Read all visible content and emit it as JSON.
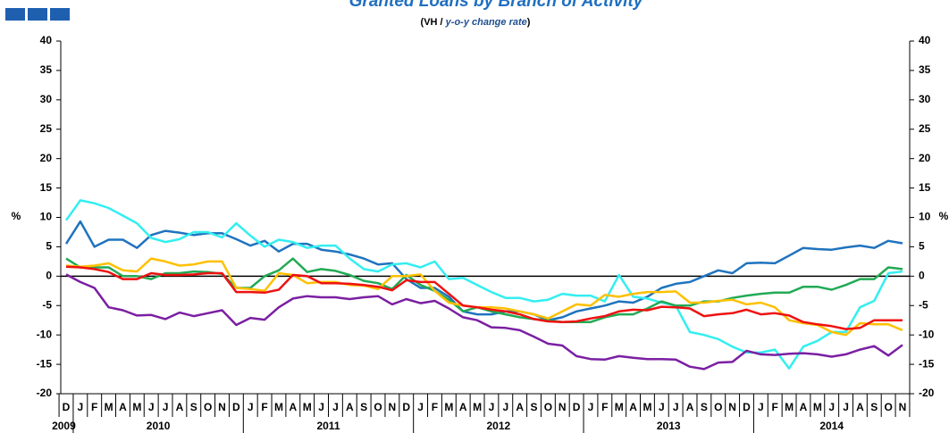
{
  "chart_data": {
    "type": "line",
    "title": "Granted Loans by Branch of Activity",
    "subtitle_parts": [
      "(VH / ",
      "y-o-y change rate",
      ")"
    ],
    "ylabel": "%",
    "y2label": "%",
    "categories": [
      "D",
      "J",
      "F",
      "M",
      "A",
      "M",
      "J",
      "J",
      "A",
      "S",
      "O",
      "N",
      "D",
      "J",
      "F",
      "M",
      "A",
      "M",
      "J",
      "J",
      "A",
      "S",
      "O",
      "N",
      "D",
      "J",
      "F",
      "M",
      "A",
      "M",
      "J",
      "J",
      "A",
      "S",
      "O",
      "N",
      "D",
      "J",
      "F",
      "M",
      "A",
      "M",
      "J",
      "J",
      "A",
      "S",
      "O",
      "N",
      "D",
      "J",
      "F",
      "M",
      "A",
      "M",
      "J",
      "J",
      "A",
      "S",
      "O",
      "N"
    ],
    "years": [
      "2009",
      "2010",
      "2011",
      "2012",
      "2013",
      "2014"
    ],
    "ylim": [
      -20,
      40
    ],
    "yticks": [
      -20,
      -15,
      -10,
      -5,
      0,
      5,
      10,
      15,
      20,
      25,
      30,
      35,
      40
    ],
    "y2lim": [
      -20,
      40
    ],
    "y2ticks": [
      -20,
      -15,
      -10,
      -5,
      0,
      5,
      10,
      15,
      20,
      25,
      30,
      35,
      40
    ],
    "grid": false,
    "series": [
      {
        "color": "#1f73be",
        "values": [
          5.5,
          9.3,
          5,
          6.2,
          6.2,
          4.8,
          7,
          7.7,
          7.4,
          7,
          7.3,
          7.3,
          6.3,
          5.2,
          6,
          4.2,
          5.5,
          5.5,
          4.5,
          4.2,
          3.7,
          3,
          2,
          2.2,
          -0.5,
          -2,
          -2,
          -3.5,
          -6,
          -6.5,
          -6.5,
          -6,
          -6,
          -6.5,
          -7.5,
          -7,
          -6,
          -5.5,
          -5,
          -4.3,
          -4.5,
          -3.5,
          -2,
          -1.3,
          -1,
          0,
          1,
          0.5,
          2.2,
          2.3,
          2.2,
          3.5,
          4.8,
          4.6,
          4.5,
          4.9,
          5.2,
          4.8,
          6,
          5.6
        ]
      },
      {
        "color": "#33eef0",
        "values": [
          9.5,
          12.9,
          12.4,
          11.6,
          10.3,
          9,
          6.5,
          5.8,
          6.3,
          7.5,
          7.5,
          6.6,
          9,
          6.9,
          5,
          6.2,
          5.8,
          4.8,
          5.2,
          5.2,
          3,
          1.2,
          0.8,
          2,
          2.2,
          1.5,
          2.5,
          -0.5,
          -0.3,
          -1.5,
          -2.7,
          -3.7,
          -3.7,
          -4.3,
          -4,
          -3,
          -3.3,
          -3.3,
          -4.3,
          0.2,
          -3.5,
          -3.8,
          -4.5,
          -5,
          -9.5,
          -10,
          -10.7,
          -12,
          -13,
          -13,
          -12.5,
          -15.7,
          -12,
          -11,
          -9.5,
          -9.5,
          -5.3,
          -4.2,
          0.5,
          0.8
        ]
      },
      {
        "color": "#22aa55",
        "values": [
          3,
          1.5,
          1.5,
          1.5,
          0,
          0,
          -0.5,
          0.5,
          0.5,
          0.8,
          0.7,
          0.4,
          -2,
          -2,
          0,
          1,
          3,
          0.7,
          1.2,
          0.9,
          0.2,
          -0.8,
          -1.2,
          -2.2,
          0.2,
          -1.5,
          -2.5,
          -4,
          -6,
          -5.3,
          -6,
          -6.5,
          -7,
          -7.3,
          -7.5,
          -7.8,
          -7.8,
          -7.8,
          -7,
          -6.5,
          -6.5,
          -5.5,
          -4.3,
          -5,
          -5,
          -4.3,
          -4.3,
          -3.7,
          -3.3,
          -3,
          -2.8,
          -2.8,
          -1.8,
          -1.8,
          -2.3,
          -1.5,
          -0.5,
          -0.5,
          1.5,
          1.2
        ]
      },
      {
        "color": "#ffc000",
        "values": [
          1.8,
          1.6,
          1.8,
          2.2,
          1,
          0.8,
          3,
          2.5,
          1.8,
          2,
          2.5,
          2.5,
          -2,
          -2.2,
          -2.5,
          0.5,
          0.2,
          -1.2,
          -1,
          -1,
          -1.5,
          -1.6,
          -2.2,
          0,
          0,
          0.3,
          -2.5,
          -4.5,
          -5,
          -5.3,
          -5.3,
          -5.5,
          -6,
          -6.5,
          -7.2,
          -6,
          -4.8,
          -5,
          -3.2,
          -3.5,
          -3,
          -2.7,
          -2.7,
          -2.6,
          -4.5,
          -4.5,
          -4.2,
          -4,
          -4.8,
          -4.5,
          -5.3,
          -7.5,
          -8,
          -8.3,
          -9.5,
          -10,
          -8,
          -8.2,
          -8.2,
          -9.2
        ]
      },
      {
        "color": "#ee1111",
        "values": [
          1.6,
          1.5,
          1.2,
          0.7,
          -0.5,
          -0.5,
          0.5,
          0.2,
          0.2,
          0.3,
          0.5,
          0.5,
          -2.7,
          -2.7,
          -2.8,
          -2.3,
          0.2,
          0,
          -1.2,
          -1.2,
          -1.3,
          -1.5,
          -1.8,
          -2.4,
          -0.7,
          -1,
          -1,
          -3,
          -5,
          -5.3,
          -5.7,
          -6,
          -6.5,
          -7.3,
          -7.7,
          -7.8,
          -7.7,
          -7.2,
          -6.8,
          -6,
          -5.7,
          -5.8,
          -5.2,
          -5.3,
          -5.5,
          -6.8,
          -6.5,
          -6.3,
          -5.7,
          -6.5,
          -6.3,
          -6.7,
          -7.8,
          -8.2,
          -8.5,
          -9,
          -8.8,
          -7.5,
          -7.5,
          -7.5
        ]
      },
      {
        "color": "#7b1fa2",
        "values": [
          0.3,
          -1,
          -2,
          -5.3,
          -5.8,
          -6.7,
          -6.6,
          -7.3,
          -6.2,
          -6.8,
          -6.3,
          -5.8,
          -8.3,
          -7.1,
          -7.4,
          -5.3,
          -3.8,
          -3.4,
          -3.6,
          -3.6,
          -3.9,
          -3.6,
          -3.4,
          -4.8,
          -3.9,
          -4.6,
          -4.2,
          -5.5,
          -7,
          -7.5,
          -8.7,
          -8.8,
          -9.2,
          -10.3,
          -11.5,
          -11.8,
          -13.6,
          -14.1,
          -14.2,
          -13.6,
          -13.9,
          -14.1,
          -14.1,
          -14.2,
          -15.4,
          -15.8,
          -14.7,
          -14.6,
          -12.7,
          -13.3,
          -13.4,
          -13.2,
          -13.1,
          -13.3,
          -13.7,
          -13.3,
          -12.5,
          -11.9,
          -13.5,
          -11.7
        ]
      }
    ]
  }
}
